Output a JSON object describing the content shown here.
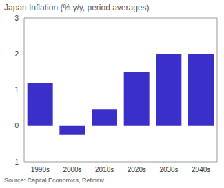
{
  "chart_data": {
    "type": "bar",
    "title": "Japan Inflation (% y/y, period averages)",
    "source": "Source: Capital Economics, Refinitiv.",
    "categories": [
      "1990s",
      "2000s",
      "2010s",
      "2020s",
      "2030s",
      "2040s"
    ],
    "values": [
      1.2,
      -0.25,
      0.45,
      1.5,
      2.0,
      2.0
    ],
    "color": "#3a2fc8",
    "ylim": [
      -1,
      3
    ],
    "yticks": [
      -1,
      0,
      1,
      2,
      3
    ],
    "grid": false,
    "data_labels": false
  }
}
